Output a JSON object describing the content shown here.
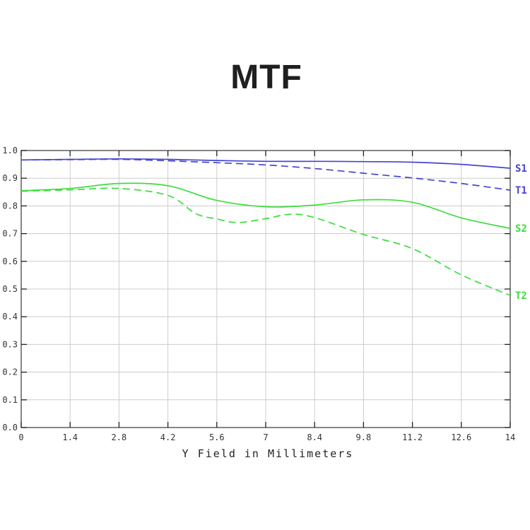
{
  "page": {
    "background": "#ffffff"
  },
  "chart_data": {
    "type": "line",
    "title": "MTF",
    "xlabel": "Y Field in Millimeters",
    "ylabel": "",
    "xlim": [
      0,
      14
    ],
    "ylim": [
      0.0,
      1.0
    ],
    "grid": true,
    "grid_color": "#cccccc",
    "frame_color": "#444444",
    "tick_color": "#222222",
    "legend_position": "right-of-plot",
    "x_ticks": [
      0,
      1.4,
      2.8,
      4.2,
      5.6,
      7,
      8.4,
      9.8,
      11.2,
      12.6,
      14
    ],
    "x_tick_labels": [
      "0",
      "1.4",
      "2.8",
      "4.2",
      "5.6",
      "7",
      "8.4",
      "9.8",
      "11.2",
      "12.6",
      "14"
    ],
    "y_ticks": [
      0.0,
      0.1,
      0.2,
      0.3,
      0.4,
      0.5,
      0.6,
      0.7,
      0.8,
      0.9,
      1.0
    ],
    "y_tick_labels": [
      "0.0",
      "0.1",
      "0.2",
      "0.3",
      "0.4",
      "0.5",
      "0.6",
      "0.7",
      "0.8",
      "0.9",
      "1.0"
    ],
    "series": [
      {
        "name": "S1",
        "color": "#4444d4",
        "style": "solid",
        "x": [
          0,
          1.4,
          2.8,
          4.2,
          5.6,
          7,
          8.4,
          9.8,
          11.2,
          12.6,
          14
        ],
        "y": [
          0.966,
          0.968,
          0.97,
          0.968,
          0.964,
          0.961,
          0.961,
          0.96,
          0.958,
          0.95,
          0.936
        ]
      },
      {
        "name": "T1",
        "color": "#4444d4",
        "style": "dashed",
        "x": [
          0,
          1.4,
          2.8,
          4.2,
          5.6,
          7,
          8.4,
          9.8,
          11.2,
          12.6,
          14
        ],
        "y": [
          0.966,
          0.967,
          0.968,
          0.963,
          0.956,
          0.948,
          0.935,
          0.918,
          0.901,
          0.881,
          0.857
        ]
      },
      {
        "name": "S2",
        "color": "#3ddd3d",
        "style": "solid",
        "x": [
          0,
          1.4,
          2.8,
          4.2,
          5.6,
          7,
          8.4,
          9.8,
          11.2,
          12.6,
          14
        ],
        "y": [
          0.855,
          0.863,
          0.881,
          0.873,
          0.82,
          0.797,
          0.803,
          0.822,
          0.813,
          0.757,
          0.719
        ]
      },
      {
        "name": "T2",
        "color": "#3ddd3d",
        "style": "dashed",
        "x": [
          0,
          1.4,
          2.8,
          4.2,
          5.0,
          5.6,
          6.2,
          7,
          7.7,
          8.4,
          9.8,
          11.2,
          12.6,
          14
        ],
        "y": [
          0.853,
          0.858,
          0.863,
          0.838,
          0.772,
          0.753,
          0.74,
          0.754,
          0.77,
          0.758,
          0.697,
          0.646,
          0.551,
          0.477
        ]
      }
    ]
  }
}
